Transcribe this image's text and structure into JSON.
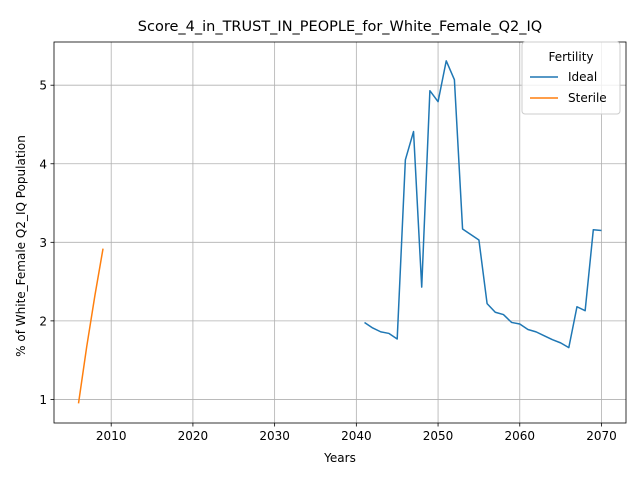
{
  "chart_data": {
    "type": "line",
    "title": "Score_4_in_TRUST_IN_PEOPLE_for_White_Female_Q2_IQ",
    "xlabel": "Years",
    "ylabel": "% of White_Female Q2_IQ Population",
    "xlim": [
      2003,
      2073
    ],
    "ylim": [
      0.7,
      5.55
    ],
    "x_ticks": [
      2010,
      2020,
      2030,
      2040,
      2050,
      2060,
      2070
    ],
    "y_ticks": [
      1,
      2,
      3,
      4,
      5
    ],
    "grid": true,
    "legend": {
      "title": "Fertility",
      "placement": "top-right"
    },
    "series": [
      {
        "name": "Ideal",
        "color": "#1f77b4",
        "x": [
          2041,
          2042,
          2043,
          2044,
          2045,
          2046,
          2047,
          2048,
          2049,
          2050,
          2051,
          2052,
          2053,
          2054,
          2055,
          2056,
          2057,
          2058,
          2059,
          2060,
          2061,
          2062,
          2063,
          2064,
          2065,
          2066,
          2067,
          2068,
          2069,
          2070
        ],
        "y": [
          1.98,
          1.91,
          1.86,
          1.84,
          1.77,
          4.05,
          4.41,
          2.43,
          4.93,
          4.79,
          5.31,
          5.07,
          3.17,
          3.1,
          3.03,
          2.22,
          2.11,
          2.08,
          1.98,
          1.96,
          1.89,
          1.86,
          1.81,
          1.76,
          1.72,
          1.66,
          2.18,
          2.13,
          3.16,
          3.15
        ]
      },
      {
        "name": "Sterile",
        "color": "#ff7f0e",
        "x": [
          2006,
          2007,
          2008,
          2009
        ],
        "y": [
          0.95,
          1.67,
          2.32,
          2.92
        ]
      }
    ]
  }
}
